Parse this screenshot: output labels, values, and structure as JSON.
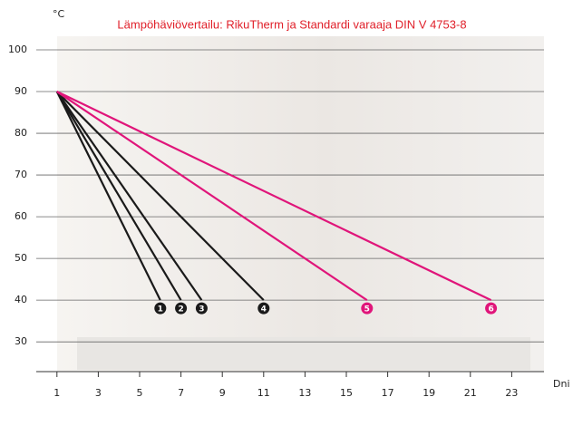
{
  "chart_data": {
    "type": "line",
    "title": "Lämpöhäviövertailu: RikuTherm ja Standardi varaaja DIN V 4753-8",
    "y_label": "°C",
    "x_label": "Dni",
    "xlim": [
      0,
      25
    ],
    "ylim": [
      22,
      105
    ],
    "xticks": [
      1,
      3,
      5,
      7,
      9,
      11,
      13,
      15,
      17,
      19,
      21,
      23
    ],
    "yticks": [
      30,
      40,
      50,
      60,
      70,
      80,
      90,
      100
    ],
    "grid": true,
    "series": [
      {
        "label": "1",
        "color": "#1a1a1a",
        "x": [
          1,
          6
        ],
        "values": [
          90,
          40
        ]
      },
      {
        "label": "2",
        "color": "#1a1a1a",
        "x": [
          1,
          7
        ],
        "values": [
          90,
          40
        ]
      },
      {
        "label": "3",
        "color": "#1a1a1a",
        "x": [
          1,
          8
        ],
        "values": [
          90,
          40
        ]
      },
      {
        "label": "4",
        "color": "#1a1a1a",
        "x": [
          1,
          11
        ],
        "values": [
          90,
          40
        ]
      },
      {
        "label": "5",
        "color": "#e0157a",
        "x": [
          1,
          16
        ],
        "values": [
          90,
          40
        ]
      },
      {
        "label": "6",
        "color": "#e0157a",
        "x": [
          1,
          22
        ],
        "values": [
          90,
          40
        ]
      }
    ]
  }
}
